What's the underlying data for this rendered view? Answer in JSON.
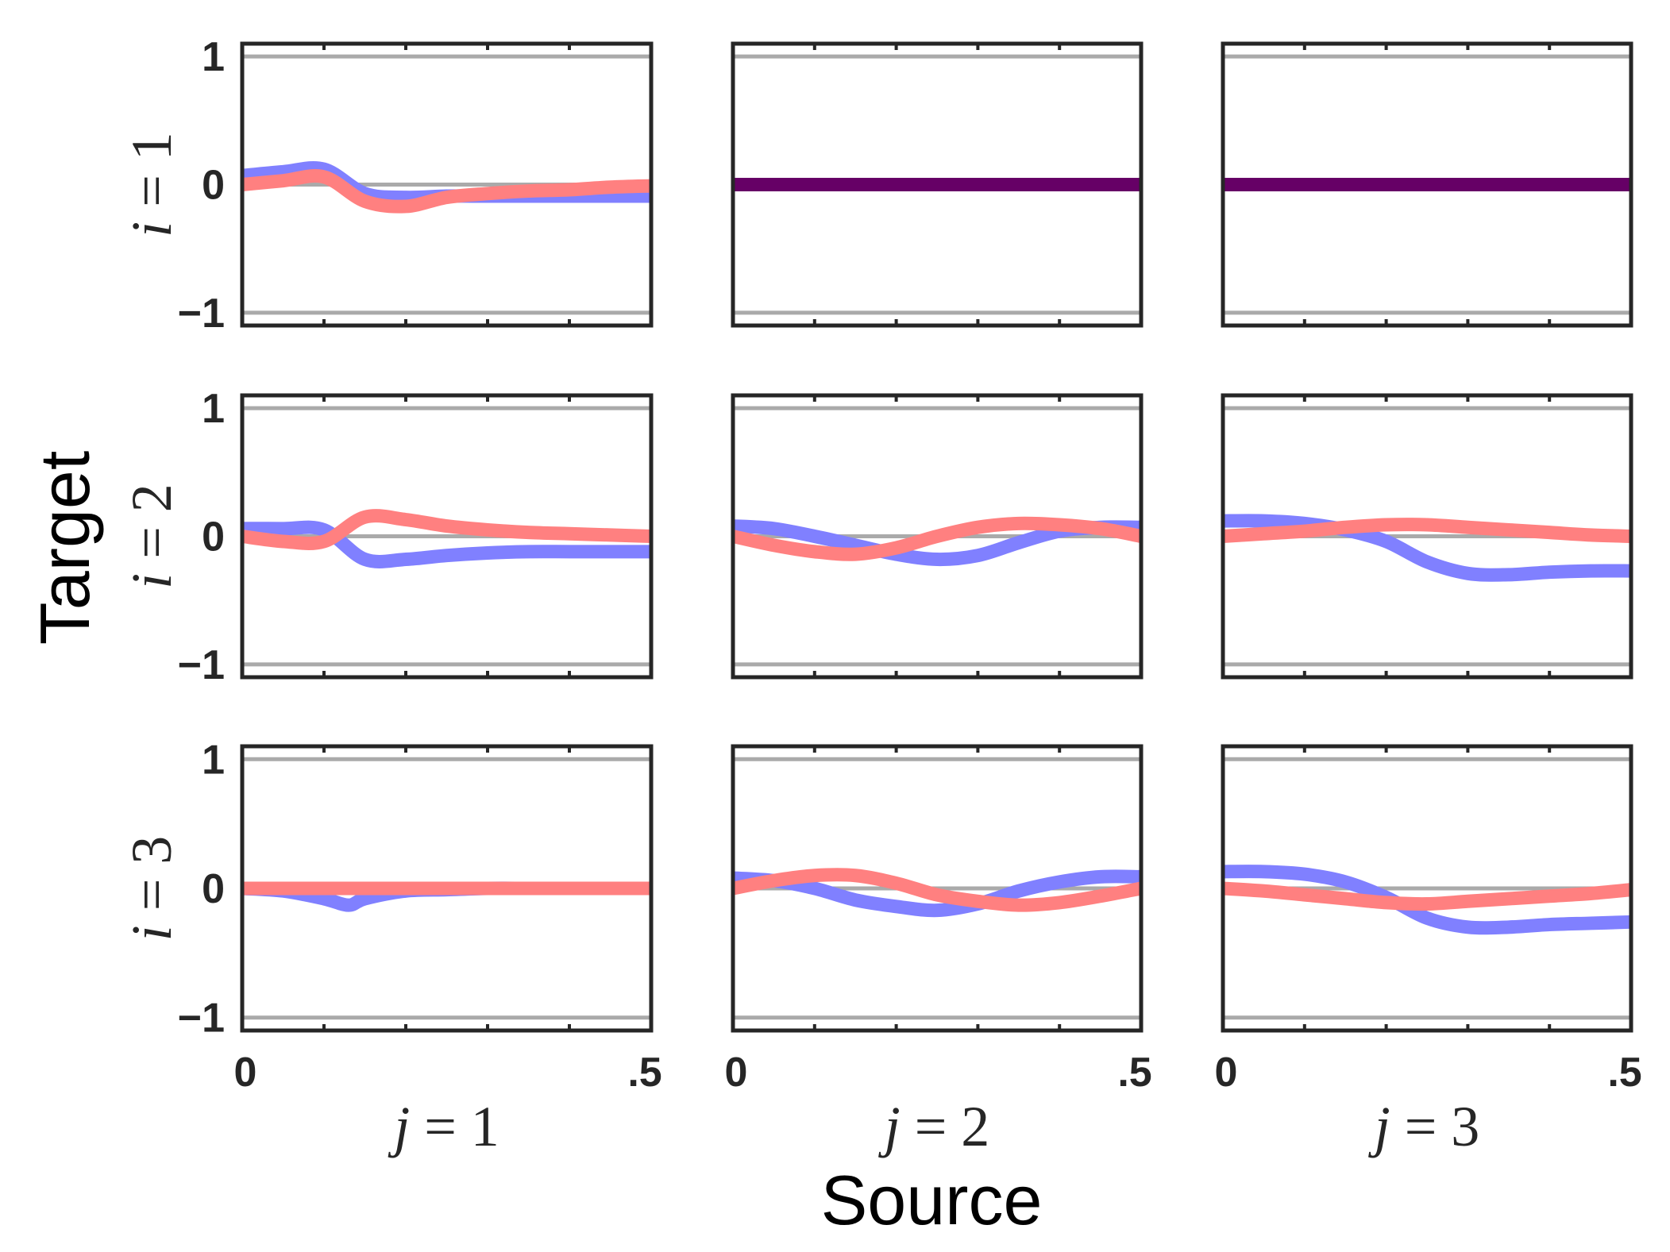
{
  "chart_data": {
    "type": "line",
    "ylim": [
      -1.1,
      1.1
    ],
    "xlim": [
      0,
      0.5
    ],
    "yticks": [
      -1,
      0,
      1
    ],
    "yticklabels": [
      "−1",
      "0",
      "1"
    ],
    "xticks": [
      0,
      0.5
    ],
    "xticklabels": [
      "0",
      ".5"
    ],
    "xlabel": "Source",
    "ylabel": "Target",
    "row_labels": [
      {
        "var": "i",
        "rest": " = 1"
      },
      {
        "var": "i",
        "rest": " = 2"
      },
      {
        "var": "i",
        "rest": " = 3"
      }
    ],
    "col_labels": [
      {
        "var": "j",
        "rest": " = 1"
      },
      {
        "var": "j",
        "rest": " = 2"
      },
      {
        "var": "j",
        "rest": " = 3"
      }
    ],
    "reference_lines": [
      -1,
      0,
      1
    ],
    "colors": {
      "blue": "#8080ff",
      "red": "#ff8080",
      "overlap": "#660066",
      "ref": "#aaaaaa",
      "frame": "#262626"
    },
    "panels": [
      {
        "row": 0,
        "col": 0,
        "overlap": false,
        "series": [
          {
            "color": "blue",
            "x": [
              0,
              0.05,
              0.1,
              0.15,
              0.2,
              0.25,
              0.3,
              0.35,
              0.4,
              0.45,
              0.5
            ],
            "y": [
              0.07,
              0.1,
              0.12,
              -0.07,
              -0.1,
              -0.09,
              -0.09,
              -0.09,
              -0.09,
              -0.09,
              -0.09
            ]
          },
          {
            "color": "red",
            "x": [
              0,
              0.05,
              0.1,
              0.15,
              0.2,
              0.25,
              0.3,
              0.35,
              0.4,
              0.45,
              0.5
            ],
            "y": [
              0.0,
              0.03,
              0.06,
              -0.13,
              -0.17,
              -0.1,
              -0.07,
              -0.05,
              -0.04,
              -0.02,
              -0.01
            ]
          }
        ]
      },
      {
        "row": 0,
        "col": 1,
        "overlap": true,
        "series": [
          {
            "color": "overlap",
            "x": [
              0,
              0.5
            ],
            "y": [
              0,
              0
            ]
          }
        ]
      },
      {
        "row": 0,
        "col": 2,
        "overlap": true,
        "series": [
          {
            "color": "overlap",
            "x": [
              0,
              0.5
            ],
            "y": [
              0,
              0
            ]
          }
        ]
      },
      {
        "row": 1,
        "col": 0,
        "overlap": false,
        "series": [
          {
            "color": "blue",
            "x": [
              0,
              0.05,
              0.1,
              0.15,
              0.2,
              0.25,
              0.3,
              0.35,
              0.4,
              0.45,
              0.5
            ],
            "y": [
              0.06,
              0.06,
              0.05,
              -0.18,
              -0.18,
              -0.15,
              -0.13,
              -0.12,
              -0.12,
              -0.12,
              -0.12
            ]
          },
          {
            "color": "red",
            "x": [
              0,
              0.05,
              0.1,
              0.15,
              0.2,
              0.25,
              0.3,
              0.35,
              0.4,
              0.45,
              0.5
            ],
            "y": [
              0.0,
              -0.04,
              -0.04,
              0.15,
              0.13,
              0.08,
              0.05,
              0.03,
              0.02,
              0.01,
              0.0
            ]
          }
        ]
      },
      {
        "row": 1,
        "col": 1,
        "overlap": false,
        "series": [
          {
            "color": "blue",
            "x": [
              0,
              0.05,
              0.1,
              0.15,
              0.2,
              0.25,
              0.3,
              0.35,
              0.4,
              0.45,
              0.5
            ],
            "y": [
              0.08,
              0.06,
              0.0,
              -0.07,
              -0.14,
              -0.18,
              -0.15,
              -0.05,
              0.04,
              0.07,
              0.07
            ]
          },
          {
            "color": "red",
            "x": [
              0,
              0.05,
              0.1,
              0.15,
              0.2,
              0.25,
              0.3,
              0.35,
              0.4,
              0.45,
              0.5
            ],
            "y": [
              0.0,
              -0.07,
              -0.12,
              -0.14,
              -0.09,
              0.0,
              0.07,
              0.1,
              0.09,
              0.06,
              0.0
            ]
          }
        ]
      },
      {
        "row": 1,
        "col": 2,
        "overlap": false,
        "series": [
          {
            "color": "blue",
            "x": [
              0,
              0.05,
              0.1,
              0.15,
              0.2,
              0.25,
              0.3,
              0.35,
              0.4,
              0.45,
              0.5
            ],
            "y": [
              0.12,
              0.12,
              0.1,
              0.05,
              -0.04,
              -0.2,
              -0.29,
              -0.3,
              -0.28,
              -0.27,
              -0.27
            ]
          },
          {
            "color": "red",
            "x": [
              0,
              0.05,
              0.1,
              0.15,
              0.2,
              0.25,
              0.3,
              0.35,
              0.4,
              0.45,
              0.5
            ],
            "y": [
              0.0,
              0.02,
              0.04,
              0.07,
              0.09,
              0.09,
              0.07,
              0.05,
              0.03,
              0.01,
              0.0
            ]
          }
        ]
      },
      {
        "row": 2,
        "col": 0,
        "overlap": false,
        "series": [
          {
            "color": "blue",
            "x": [
              0,
              0.05,
              0.1,
              0.13,
              0.15,
              0.2,
              0.25,
              0.3,
              0.35,
              0.4,
              0.45,
              0.5
            ],
            "y": [
              0.0,
              -0.02,
              -0.08,
              -0.13,
              -0.08,
              -0.02,
              -0.01,
              0.0,
              0.0,
              0.0,
              0.0,
              0.0
            ]
          },
          {
            "color": "red",
            "x": [
              0,
              0.05,
              0.1,
              0.15,
              0.2,
              0.25,
              0.3,
              0.35,
              0.4,
              0.45,
              0.5
            ],
            "y": [
              0.0,
              0.0,
              0.0,
              0.0,
              0.0,
              0.0,
              0.0,
              0.0,
              0.0,
              0.0,
              0.0
            ]
          }
        ]
      },
      {
        "row": 2,
        "col": 1,
        "overlap": false,
        "series": [
          {
            "color": "blue",
            "x": [
              0,
              0.05,
              0.1,
              0.15,
              0.2,
              0.25,
              0.3,
              0.35,
              0.4,
              0.45,
              0.5
            ],
            "y": [
              0.08,
              0.06,
              0.0,
              -0.09,
              -0.14,
              -0.17,
              -0.12,
              -0.02,
              0.05,
              0.09,
              0.09
            ]
          },
          {
            "color": "red",
            "x": [
              0,
              0.05,
              0.1,
              0.15,
              0.2,
              0.25,
              0.3,
              0.35,
              0.4,
              0.45,
              0.5
            ],
            "y": [
              0.0,
              0.06,
              0.1,
              0.1,
              0.04,
              -0.05,
              -0.1,
              -0.13,
              -0.11,
              -0.06,
              0.0
            ]
          }
        ]
      },
      {
        "row": 2,
        "col": 2,
        "overlap": false,
        "series": [
          {
            "color": "blue",
            "x": [
              0,
              0.05,
              0.1,
              0.15,
              0.2,
              0.25,
              0.3,
              0.35,
              0.4,
              0.45,
              0.5
            ],
            "y": [
              0.13,
              0.13,
              0.11,
              0.05,
              -0.07,
              -0.23,
              -0.3,
              -0.3,
              -0.28,
              -0.27,
              -0.26
            ]
          },
          {
            "color": "red",
            "x": [
              0,
              0.05,
              0.1,
              0.15,
              0.2,
              0.25,
              0.3,
              0.35,
              0.4,
              0.45,
              0.5
            ],
            "y": [
              0.0,
              -0.02,
              -0.05,
              -0.08,
              -0.11,
              -0.12,
              -0.1,
              -0.08,
              -0.06,
              -0.04,
              -0.01
            ]
          }
        ]
      }
    ]
  }
}
